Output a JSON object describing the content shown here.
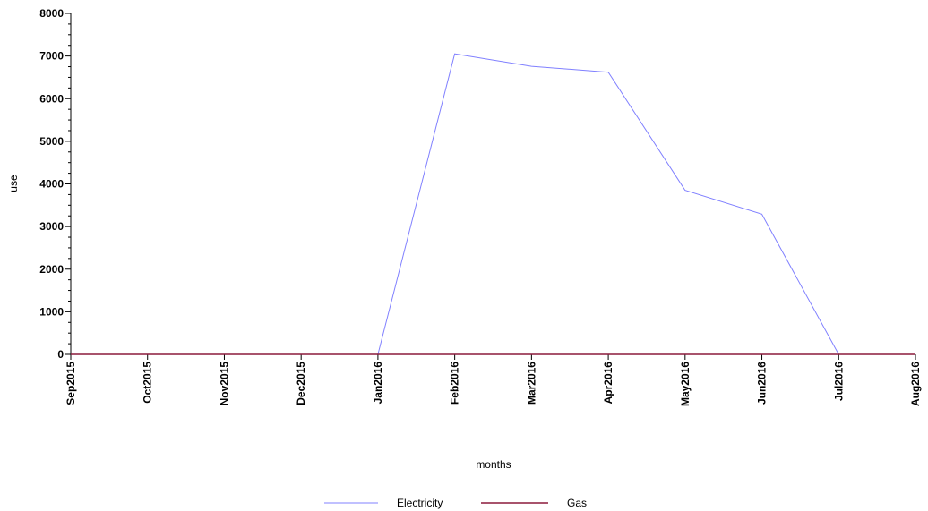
{
  "chart_data": {
    "type": "line",
    "title": "",
    "xlabel": "months",
    "ylabel": "use",
    "categories": [
      "Sep2015",
      "Oct2015",
      "Nov2015",
      "Dec2015",
      "Jan2016",
      "Feb2016",
      "Mar2016",
      "Apr2016",
      "May2016",
      "Jun2016",
      "Jul2016",
      "Aug2016"
    ],
    "ylim": [
      0,
      8000
    ],
    "yticks": [
      "0",
      "1000",
      "2000",
      "3000",
      "4000",
      "5000",
      "6000",
      "7000",
      "8000"
    ],
    "grid": false,
    "legend_position": "bottom-center",
    "series": [
      {
        "name": "Electricity",
        "color": "#8080ff",
        "values": [
          0,
          0,
          0,
          0,
          0,
          7050,
          6760,
          6620,
          3850,
          3290,
          0,
          0
        ]
      },
      {
        "name": "Gas",
        "color": "#8b1a3c",
        "values": [
          0,
          0,
          0,
          0,
          0,
          0,
          0,
          0,
          0,
          0,
          0,
          0
        ]
      }
    ]
  }
}
